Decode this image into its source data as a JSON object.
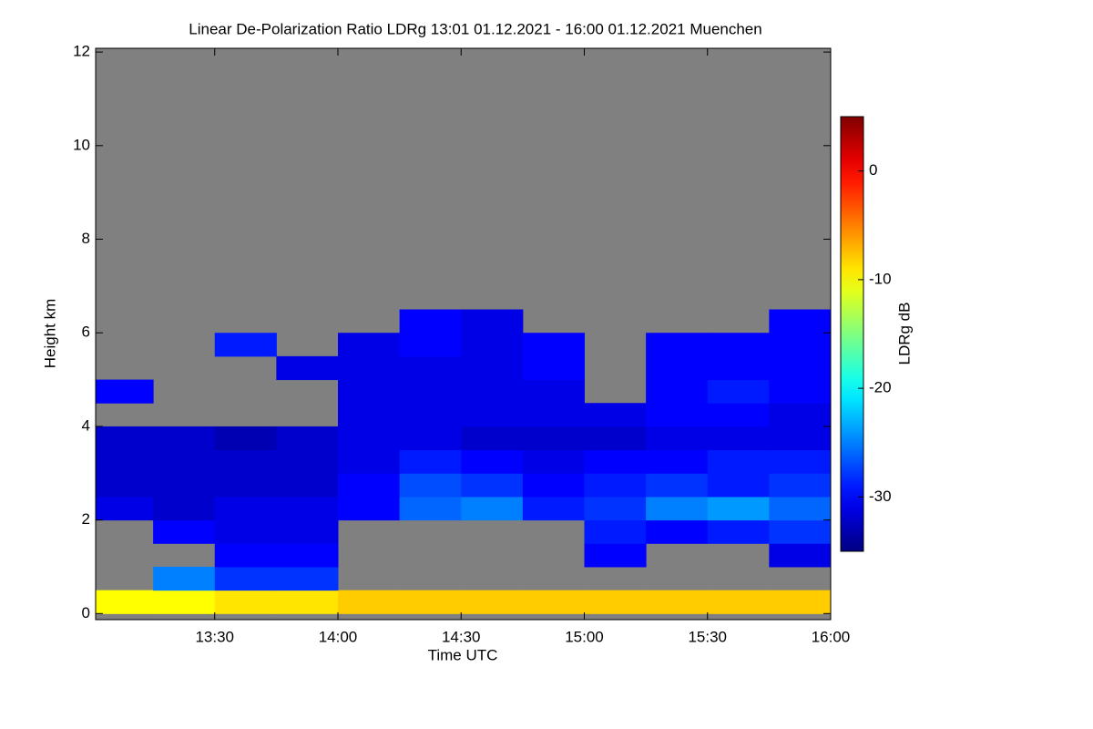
{
  "chart_data": {
    "type": "heatmap",
    "title": "Linear De-Polarization Ratio LDRg   13:01 01.12.2021 - 16:00 01.12.2021 Muenchen",
    "xlabel": "Time UTC",
    "ylabel": "Height km",
    "colorbar_label": "LDRg dB",
    "x": [
      781,
      795,
      810,
      825,
      840,
      855,
      870,
      885,
      900,
      915,
      930,
      945,
      960
    ],
    "y": [
      0,
      0.5,
      1,
      1.5,
      2,
      2.5,
      3,
      3.5,
      4,
      4.5,
      5,
      5.5,
      6,
      6.5,
      7
    ],
    "z": [
      [
        -10,
        -10,
        -9,
        -9,
        -8,
        -8,
        -8,
        -8,
        -8,
        -8,
        -8,
        -8
      ],
      [
        null,
        -25,
        -28,
        -28,
        null,
        null,
        null,
        null,
        null,
        null,
        null,
        null
      ],
      [
        null,
        null,
        -30,
        -30,
        null,
        null,
        null,
        null,
        -30,
        null,
        null,
        -31
      ],
      [
        null,
        -30,
        -31,
        -31,
        null,
        null,
        null,
        null,
        -29,
        -30,
        -29,
        -28
      ],
      [
        -31,
        -32,
        -31,
        -31,
        -30,
        -26,
        -25,
        -29,
        -28,
        -25,
        -24,
        -26
      ],
      [
        -32,
        -32,
        -32,
        -32,
        -30,
        -27,
        -28,
        -30,
        -29,
        -28,
        -29,
        -28
      ],
      [
        -32,
        -32,
        -32,
        -32,
        -31,
        -29,
        -30,
        -31,
        -30,
        -30,
        -29,
        -29
      ],
      [
        -32,
        -32,
        -33,
        -32,
        -31,
        -31,
        -32,
        -32,
        -32,
        -31,
        -31,
        -31
      ],
      [
        null,
        null,
        null,
        null,
        -31,
        -31,
        -31,
        -31,
        -31,
        -30,
        -30,
        -31
      ],
      [
        -30,
        null,
        null,
        null,
        -31,
        -31,
        -31,
        -31,
        null,
        -30,
        -29,
        -30
      ],
      [
        null,
        null,
        null,
        -31,
        -31,
        -31,
        -31,
        -30,
        null,
        -30,
        -30,
        -30
      ],
      [
        null,
        null,
        -29,
        null,
        -31,
        -30,
        -31,
        -30,
        null,
        -30,
        -30,
        -30
      ],
      [
        null,
        null,
        null,
        null,
        null,
        -30,
        -31,
        null,
        null,
        null,
        null,
        -30
      ],
      [
        null,
        null,
        null,
        null,
        null,
        null,
        null,
        null,
        null,
        null,
        null,
        null
      ]
    ],
    "xlim": [
      781,
      960
    ],
    "xticks": [
      {
        "value": 810,
        "label": "13:30"
      },
      {
        "value": 840,
        "label": "14:00"
      },
      {
        "value": 870,
        "label": "14:30"
      },
      {
        "value": 900,
        "label": "15:00"
      },
      {
        "value": 930,
        "label": "15:30"
      },
      {
        "value": 960,
        "label": "16:00"
      }
    ],
    "ylim": [
      -0.13,
      12.08
    ],
    "yticks": [
      0,
      2,
      4,
      6,
      8,
      10,
      12
    ],
    "zlim": [
      -35,
      5
    ],
    "zticks": [
      0,
      -10,
      -20,
      -30
    ],
    "colormap": "jet",
    "missing_color": "#808080"
  }
}
